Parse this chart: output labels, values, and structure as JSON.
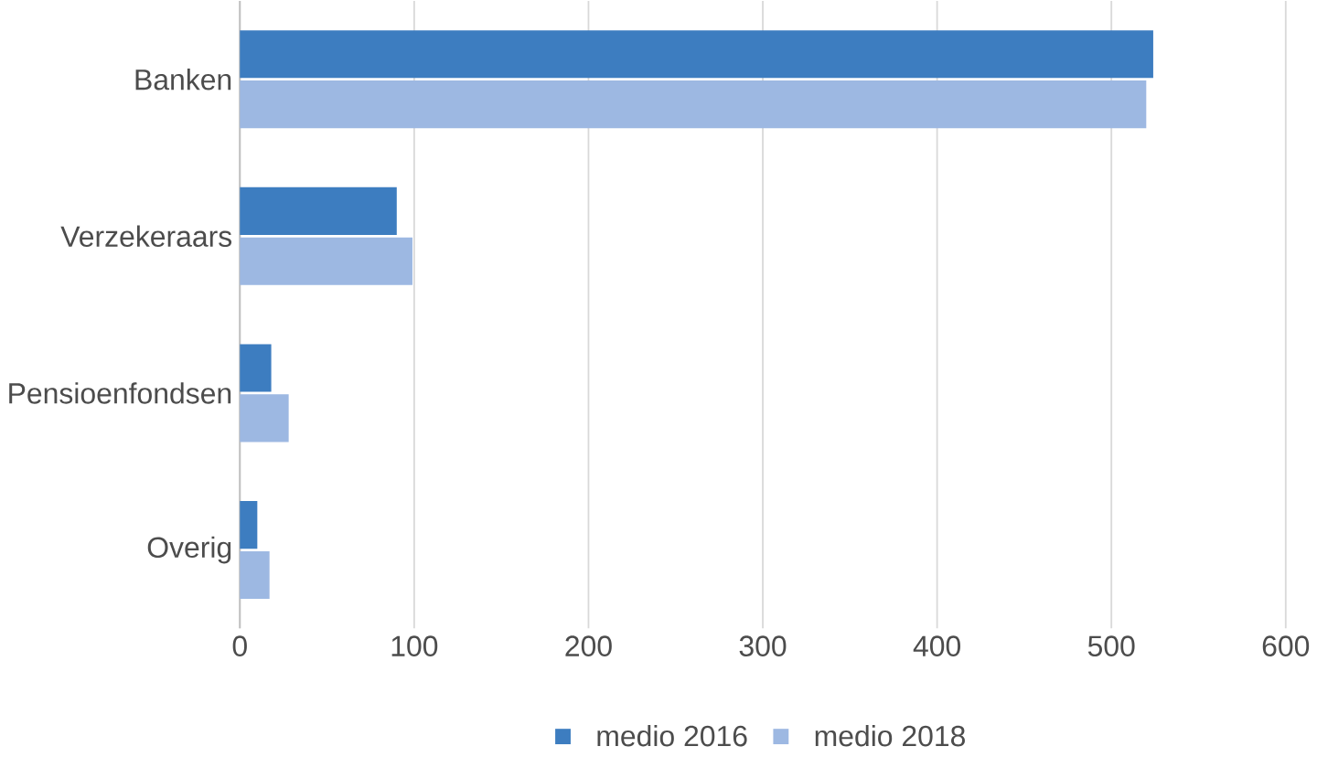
{
  "chart_data": {
    "type": "bar",
    "orientation": "horizontal",
    "categories": [
      "Banken",
      "Verzekeraars",
      "Pensioenfondsen",
      "Overig"
    ],
    "series": [
      {
        "name": "medio 2016",
        "color": "#3d7dc0",
        "values": [
          524,
          90,
          18,
          10
        ]
      },
      {
        "name": "medio 2018",
        "color": "#9db8e2",
        "values": [
          520,
          99,
          28,
          17
        ]
      }
    ],
    "xlim": [
      0,
      600
    ],
    "xticks": [
      0,
      100,
      200,
      300,
      400,
      500,
      600
    ],
    "grid": "x",
    "legend": "bottom"
  }
}
